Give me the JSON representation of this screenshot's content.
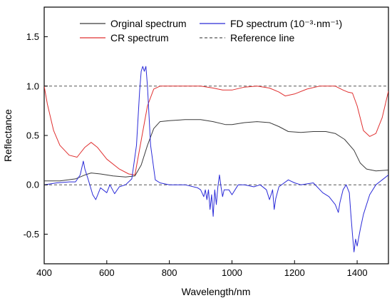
{
  "chart_data": {
    "type": "line",
    "xlabel": "Wavelength/nm",
    "ylabel": "Reflectance",
    "xlim": [
      400,
      1500
    ],
    "ylim": [
      -0.8,
      1.8
    ],
    "x_ticks": [
      400,
      600,
      800,
      1000,
      1200,
      1400
    ],
    "x_tick_labels": [
      "400",
      "600",
      "800",
      "1000",
      "1200",
      "1400"
    ],
    "y_ticks": [
      -0.5,
      0.0,
      0.5,
      1.0,
      1.5
    ],
    "y_tick_labels": [
      "-0.5",
      "0.0",
      "0.5",
      "1.0",
      "1.5"
    ],
    "grid": false,
    "legend_position": "top",
    "series": [
      {
        "name": "Orginal spectrum",
        "color": "#3a3a3a",
        "points": [
          [
            400,
            0.04
          ],
          [
            450,
            0.04
          ],
          [
            500,
            0.06
          ],
          [
            530,
            0.1
          ],
          [
            550,
            0.12
          ],
          [
            580,
            0.11
          ],
          [
            620,
            0.09
          ],
          [
            660,
            0.08
          ],
          [
            690,
            0.09
          ],
          [
            710,
            0.2
          ],
          [
            730,
            0.4
          ],
          [
            750,
            0.57
          ],
          [
            770,
            0.64
          ],
          [
            800,
            0.65
          ],
          [
            850,
            0.66
          ],
          [
            900,
            0.66
          ],
          [
            940,
            0.64
          ],
          [
            980,
            0.61
          ],
          [
            1000,
            0.61
          ],
          [
            1040,
            0.63
          ],
          [
            1080,
            0.64
          ],
          [
            1120,
            0.63
          ],
          [
            1150,
            0.59
          ],
          [
            1180,
            0.54
          ],
          [
            1220,
            0.53
          ],
          [
            1260,
            0.54
          ],
          [
            1300,
            0.54
          ],
          [
            1330,
            0.52
          ],
          [
            1360,
            0.46
          ],
          [
            1390,
            0.35
          ],
          [
            1410,
            0.22
          ],
          [
            1430,
            0.16
          ],
          [
            1460,
            0.14
          ],
          [
            1500,
            0.15
          ]
        ]
      },
      {
        "name": "CR spectrum",
        "color": "#e03030",
        "points": [
          [
            400,
            1.0
          ],
          [
            410,
            0.82
          ],
          [
            430,
            0.55
          ],
          [
            450,
            0.4
          ],
          [
            480,
            0.3
          ],
          [
            505,
            0.28
          ],
          [
            530,
            0.38
          ],
          [
            550,
            0.43
          ],
          [
            570,
            0.38
          ],
          [
            600,
            0.26
          ],
          [
            640,
            0.16
          ],
          [
            670,
            0.11
          ],
          [
            690,
            0.1
          ],
          [
            710,
            0.45
          ],
          [
            730,
            0.8
          ],
          [
            750,
            0.97
          ],
          [
            770,
            1.0
          ],
          [
            800,
            1.0
          ],
          [
            900,
            1.0
          ],
          [
            940,
            0.98
          ],
          [
            970,
            0.96
          ],
          [
            1000,
            0.96
          ],
          [
            1040,
            0.99
          ],
          [
            1080,
            1.0
          ],
          [
            1120,
            0.98
          ],
          [
            1150,
            0.94
          ],
          [
            1170,
            0.9
          ],
          [
            1200,
            0.92
          ],
          [
            1240,
            0.97
          ],
          [
            1280,
            1.0
          ],
          [
            1330,
            1.0
          ],
          [
            1355,
            0.96
          ],
          [
            1370,
            0.94
          ],
          [
            1385,
            0.93
          ],
          [
            1400,
            0.8
          ],
          [
            1420,
            0.55
          ],
          [
            1440,
            0.49
          ],
          [
            1460,
            0.52
          ],
          [
            1480,
            0.68
          ],
          [
            1500,
            0.95
          ]
        ]
      },
      {
        "name": "FD spectrum (10⁻³·nm⁻¹)",
        "color": "#2b2bd8",
        "points": [
          [
            400,
            0.0
          ],
          [
            440,
            0.02
          ],
          [
            480,
            0.03
          ],
          [
            500,
            0.03
          ],
          [
            515,
            0.1
          ],
          [
            525,
            0.24
          ],
          [
            530,
            0.16
          ],
          [
            540,
            0.06
          ],
          [
            555,
            -0.1
          ],
          [
            565,
            -0.15
          ],
          [
            580,
            -0.03
          ],
          [
            600,
            -0.08
          ],
          [
            610,
            0.0
          ],
          [
            625,
            -0.09
          ],
          [
            640,
            -0.02
          ],
          [
            660,
            0.0
          ],
          [
            680,
            0.06
          ],
          [
            695,
            0.4
          ],
          [
            705,
            0.95
          ],
          [
            710,
            1.15
          ],
          [
            715,
            1.2
          ],
          [
            720,
            1.15
          ],
          [
            725,
            1.2
          ],
          [
            730,
            1.0
          ],
          [
            740,
            0.4
          ],
          [
            755,
            0.05
          ],
          [
            770,
            0.02
          ],
          [
            800,
            0.0
          ],
          [
            850,
            0.0
          ],
          [
            890,
            -0.03
          ],
          [
            900,
            -0.05
          ],
          [
            910,
            -0.12
          ],
          [
            915,
            -0.05
          ],
          [
            920,
            -0.15
          ],
          [
            925,
            -0.05
          ],
          [
            930,
            -0.25
          ],
          [
            935,
            -0.1
          ],
          [
            940,
            -0.32
          ],
          [
            945,
            -0.05
          ],
          [
            950,
            -0.2
          ],
          [
            955,
            -0.02
          ],
          [
            960,
            0.1
          ],
          [
            965,
            -0.02
          ],
          [
            970,
            -0.12
          ],
          [
            975,
            -0.05
          ],
          [
            990,
            -0.05
          ],
          [
            1000,
            -0.1
          ],
          [
            1020,
            0.0
          ],
          [
            1040,
            0.0
          ],
          [
            1070,
            -0.02
          ],
          [
            1090,
            0.0
          ],
          [
            1110,
            -0.05
          ],
          [
            1120,
            -0.15
          ],
          [
            1130,
            -0.05
          ],
          [
            1135,
            -0.25
          ],
          [
            1140,
            -0.14
          ],
          [
            1150,
            -0.02
          ],
          [
            1180,
            0.05
          ],
          [
            1200,
            0.02
          ],
          [
            1220,
            0.0
          ],
          [
            1260,
            0.02
          ],
          [
            1290,
            -0.08
          ],
          [
            1310,
            -0.12
          ],
          [
            1330,
            -0.2
          ],
          [
            1340,
            -0.28
          ],
          [
            1345,
            -0.18
          ],
          [
            1355,
            -0.05
          ],
          [
            1365,
            0.0
          ],
          [
            1375,
            -0.08
          ],
          [
            1380,
            -0.3
          ],
          [
            1385,
            -0.5
          ],
          [
            1390,
            -0.68
          ],
          [
            1395,
            -0.55
          ],
          [
            1400,
            -0.62
          ],
          [
            1410,
            -0.45
          ],
          [
            1420,
            -0.3
          ],
          [
            1440,
            -0.1
          ],
          [
            1460,
            0.0
          ],
          [
            1480,
            0.05
          ],
          [
            1500,
            0.1
          ]
        ]
      },
      {
        "name": "Reference line",
        "color": "#555555",
        "dashed": true,
        "reference_values": [
          0.0,
          1.0
        ]
      }
    ]
  }
}
